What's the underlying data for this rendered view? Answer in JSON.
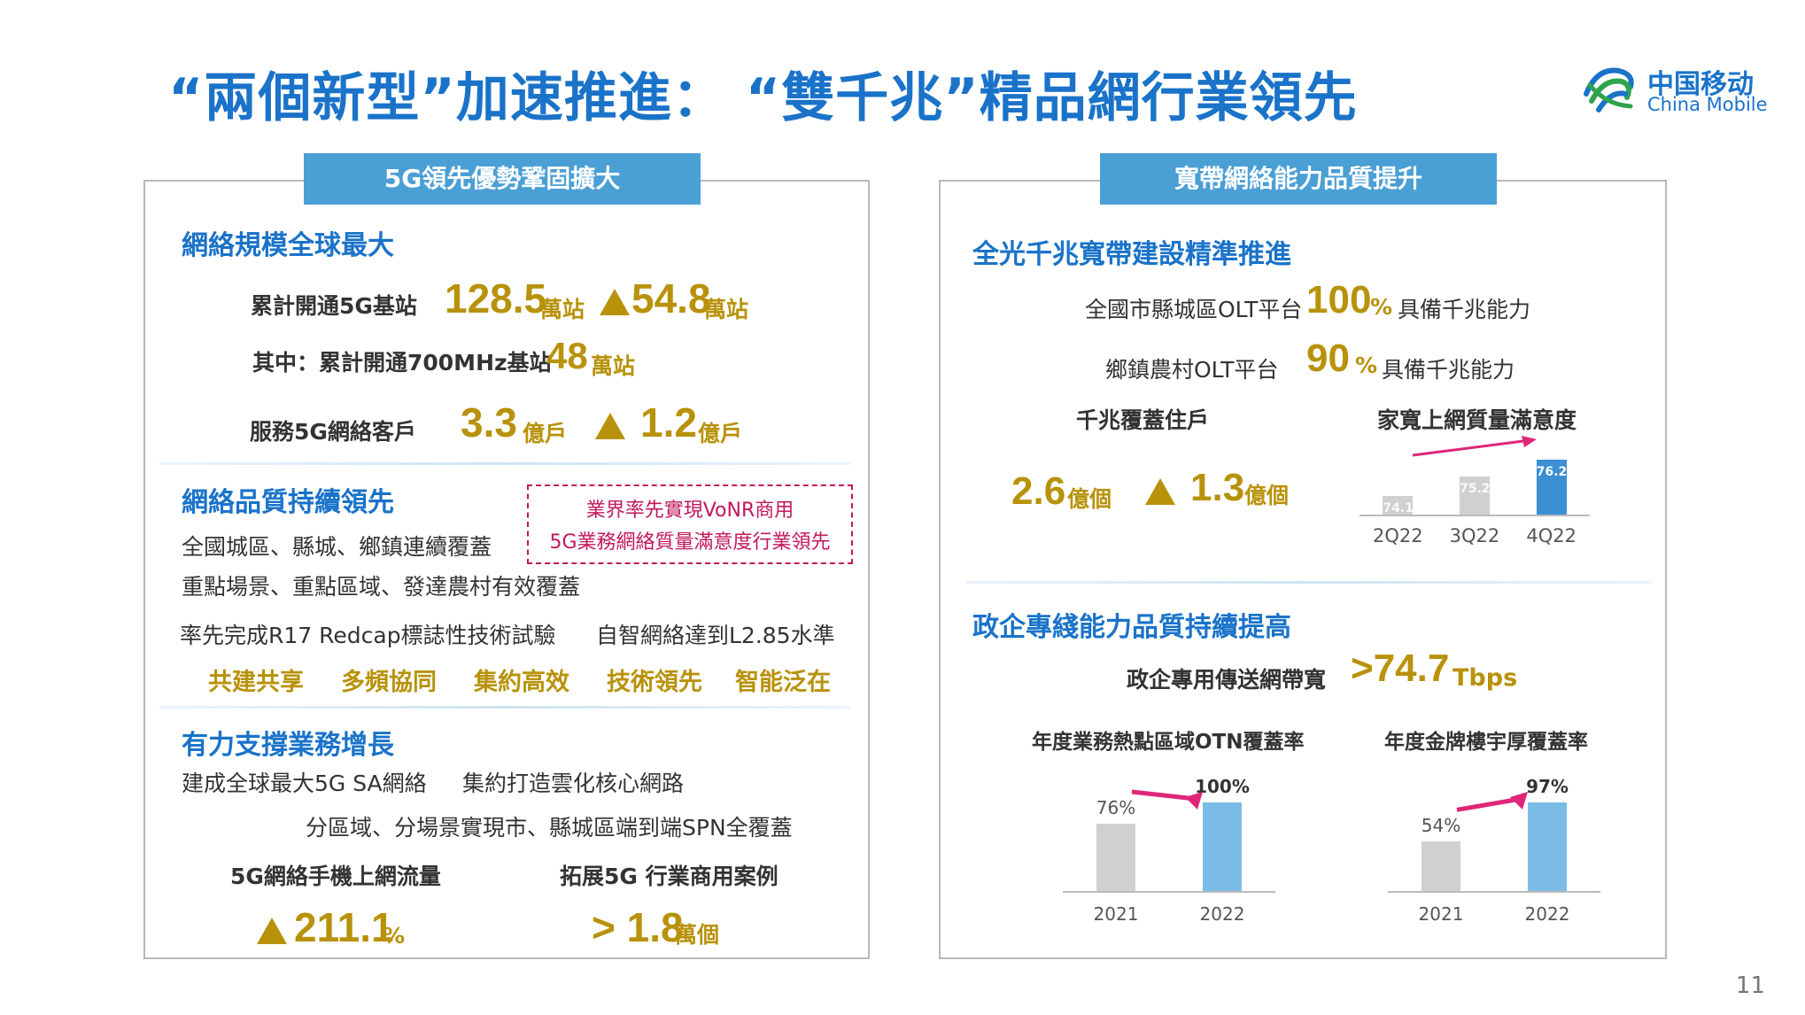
{
  "title": "“兩個新型”加速推進： “雙千兆”精品網行業領先",
  "logo": {
    "cn": "中国移动",
    "en": "China Mobile"
  },
  "left_panel": {
    "tab": "5G領先優勢鞏固擴大",
    "sec1": {
      "head": "網絡規模全球最大",
      "row1": {
        "label": "累計開通5G基站",
        "value": "128.5",
        "unit": "萬站",
        "delta": "54.8",
        "delta_unit": "萬站"
      },
      "row2": {
        "label": "其中：累計開通700MHz基站",
        "value": "48",
        "unit": "萬站"
      },
      "row3": {
        "label": "服務5G網絡客戶",
        "value": "3.3",
        "unit": "億戶",
        "delta": "1.2",
        "delta_unit": "億戶"
      }
    },
    "sec2": {
      "head": "網絡品質持續領先",
      "line1": "全國城區、縣城、鄉鎮連續覆蓋",
      "line2": "重點場景、重點區域、發達農村有效覆蓋",
      "box1": "業界率先實現VoNR商用",
      "box2": "5G業務網絡質量滿意度行業領先",
      "line3": "率先完成R17 Redcap標誌性技術試驗",
      "line4": "自智網絡達到L2.85水準",
      "tags": [
        "共建共享",
        "多頻協同",
        "集約高效",
        "技術領先",
        "智能泛在"
      ]
    },
    "sec3": {
      "head": "有力支撐業務增長",
      "line1": "建成全球最大5G SA網絡",
      "line2": "集約打造雲化核心網路",
      "line3": "分區域、分場景實現市、縣城區端到端SPN全覆蓋",
      "stat1_label": "5G網絡手機上網流量",
      "stat1_value": "211.1",
      "stat1_unit": "%",
      "stat2_label": "拓展5G 行業商用案例",
      "stat2_value": "> 1.8",
      "stat2_unit": "萬個"
    }
  },
  "right_panel": {
    "tab": "寬帶網絡能力品質提升",
    "sec1": {
      "head": "全光千兆寬帶建設精準推進",
      "row1": {
        "label": "全國市縣城區OLT平台",
        "value": "100",
        "unit": "%",
        "suffix": "具備千兆能力"
      },
      "row2": {
        "label": "鄉鎮農村OLT平台",
        "value": "90",
        "unit": "%",
        "suffix": "具備千兆能力"
      },
      "homes_label": "千兆覆蓋住戶",
      "homes_value": "2.6",
      "homes_unit": "億個",
      "homes_delta": "1.3",
      "homes_delta_unit": "億個",
      "chart_title": "家寬上網質量滿意度"
    },
    "sec2": {
      "head": "政企專綫能力品質持續提高",
      "bw_label": "政企專用傳送網帶寬",
      "bw_value": ">74.7",
      "bw_unit": "Tbps",
      "chart1_title": "年度業務熱點區域OTN覆蓋率",
      "chart2_title": "年度金牌樓宇厚覆蓋率"
    }
  },
  "page_number": "11",
  "colors": {
    "title_blue": "#1a73c9",
    "gold": "#b8920a",
    "tab_blue": "#4a9fd5",
    "pink": "#c2185b"
  },
  "chart_data": [
    {
      "type": "bar",
      "title": "家寬上網質量滿意度",
      "categories": [
        "2Q22",
        "3Q22",
        "4Q22"
      ],
      "values": [
        74.1,
        75.2,
        76.2
      ],
      "value_labels": [
        "74.1",
        "75.2",
        "76.2"
      ],
      "ylim": [
        73,
        76.2
      ]
    },
    {
      "type": "bar",
      "title": "年度業務熱點區域OTN覆蓋率",
      "categories": [
        "2021",
        "2022"
      ],
      "values": [
        76,
        100
      ],
      "value_labels": [
        "76%",
        "100%"
      ],
      "ylim": [
        0,
        100
      ]
    },
    {
      "type": "bar",
      "title": "年度金牌樓宇厚覆蓋率",
      "categories": [
        "2021",
        "2022"
      ],
      "values": [
        54,
        97
      ],
      "value_labels": [
        "54%",
        "97%"
      ],
      "ylim": [
        0,
        97
      ]
    }
  ]
}
